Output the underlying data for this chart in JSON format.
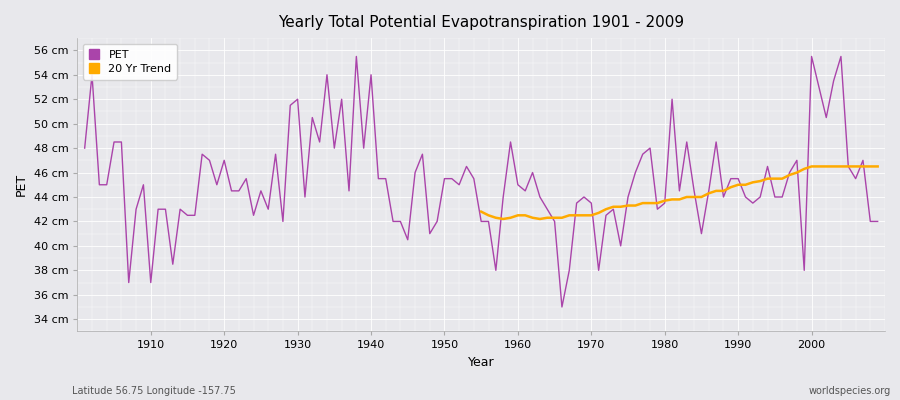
{
  "title": "Yearly Total Potential Evapotranspiration 1901 - 2009",
  "xlabel": "Year",
  "ylabel": "PET",
  "subtitle_left": "Latitude 56.75 Longitude -157.75",
  "subtitle_right": "worldspecies.org",
  "pet_color": "#aa44aa",
  "trend_color": "#ffaa00",
  "bg_color": "#e8e8ec",
  "plot_bg_color": "#e8e8ec",
  "ylim": [
    33,
    57
  ],
  "ytick_labels": [
    "34 cm",
    "36 cm",
    "38 cm",
    "40 cm",
    "42 cm",
    "44 cm",
    "46 cm",
    "48 cm",
    "50 cm",
    "52 cm",
    "54 cm",
    "56 cm"
  ],
  "ytick_values": [
    34,
    36,
    38,
    40,
    42,
    44,
    46,
    48,
    50,
    52,
    54,
    56
  ],
  "years": [
    1901,
    1902,
    1903,
    1904,
    1905,
    1906,
    1907,
    1908,
    1909,
    1910,
    1911,
    1912,
    1913,
    1914,
    1915,
    1916,
    1917,
    1918,
    1919,
    1920,
    1921,
    1922,
    1923,
    1924,
    1925,
    1926,
    1927,
    1928,
    1929,
    1930,
    1931,
    1932,
    1933,
    1934,
    1935,
    1936,
    1937,
    1938,
    1939,
    1940,
    1941,
    1942,
    1943,
    1944,
    1945,
    1946,
    1947,
    1948,
    1949,
    1950,
    1951,
    1952,
    1953,
    1954,
    1955,
    1956,
    1957,
    1958,
    1959,
    1960,
    1961,
    1962,
    1963,
    1964,
    1965,
    1966,
    1967,
    1968,
    1969,
    1970,
    1971,
    1972,
    1973,
    1974,
    1975,
    1976,
    1977,
    1978,
    1979,
    1980,
    1981,
    1982,
    1983,
    1984,
    1985,
    1986,
    1987,
    1988,
    1989,
    1990,
    1991,
    1992,
    1993,
    1994,
    1995,
    1996,
    1997,
    1998,
    1999,
    2000,
    2001,
    2002,
    2003,
    2004,
    2005,
    2006,
    2007,
    2008,
    2009
  ],
  "pet_values": [
    48.0,
    54.0,
    45.0,
    45.0,
    48.5,
    48.5,
    37.0,
    43.0,
    45.0,
    37.0,
    43.0,
    43.0,
    38.5,
    43.0,
    42.5,
    42.5,
    47.5,
    47.0,
    45.0,
    47.0,
    44.5,
    44.5,
    45.5,
    42.5,
    44.5,
    43.0,
    47.5,
    42.0,
    51.5,
    52.0,
    44.0,
    50.5,
    48.5,
    54.0,
    48.0,
    52.0,
    44.5,
    55.5,
    48.0,
    54.0,
    45.5,
    45.5,
    42.0,
    42.0,
    40.5,
    46.0,
    47.5,
    41.0,
    42.0,
    45.5,
    45.5,
    45.0,
    46.5,
    45.5,
    42.0,
    42.0,
    38.0,
    44.0,
    48.5,
    45.0,
    44.5,
    46.0,
    44.0,
    43.0,
    42.0,
    35.0,
    38.0,
    43.5,
    44.0,
    43.5,
    38.0,
    42.5,
    43.0,
    40.0,
    44.0,
    46.0,
    47.5,
    48.0,
    43.0,
    43.5,
    52.0,
    44.5,
    48.5,
    44.5,
    41.0,
    44.5,
    48.5,
    44.0,
    45.5,
    45.5,
    44.0,
    43.5,
    44.0,
    46.5,
    44.0,
    44.0,
    46.0,
    47.0,
    38.0,
    55.5,
    53.0,
    50.5,
    53.5,
    55.5,
    46.5,
    45.5,
    47.0,
    42.0,
    42.0
  ],
  "trend_start_year": 1955,
  "trend_years": [
    1955,
    1956,
    1957,
    1958,
    1959,
    1960,
    1961,
    1962,
    1963,
    1964,
    1965,
    1966,
    1967,
    1968,
    1969,
    1970,
    1971,
    1972,
    1973,
    1974,
    1975,
    1976,
    1977,
    1978,
    1979,
    1980,
    1981,
    1982,
    1983,
    1984,
    1985,
    1986,
    1987,
    1988,
    1989,
    1990,
    1991,
    1992,
    1993,
    1994,
    1995,
    1996,
    1997,
    1998,
    1999,
    2000,
    2001,
    2002,
    2003,
    2004,
    2005,
    2006,
    2007,
    2008,
    2009
  ],
  "trend_values": [
    42.8,
    42.5,
    42.3,
    42.2,
    42.3,
    42.5,
    42.5,
    42.3,
    42.2,
    42.3,
    42.3,
    42.3,
    42.5,
    42.5,
    42.5,
    42.5,
    42.7,
    43.0,
    43.2,
    43.2,
    43.3,
    43.3,
    43.5,
    43.5,
    43.5,
    43.7,
    43.8,
    43.8,
    44.0,
    44.0,
    44.0,
    44.3,
    44.5,
    44.5,
    44.8,
    45.0,
    45.0,
    45.2,
    45.3,
    45.5,
    45.5,
    45.5,
    45.8,
    46.0,
    46.3,
    46.5,
    46.5,
    46.5,
    46.5,
    46.5,
    46.5,
    46.5,
    46.5,
    46.5,
    46.5
  ],
  "xticks": [
    1910,
    1920,
    1930,
    1940,
    1950,
    1960,
    1970,
    1980,
    1990,
    2000
  ]
}
